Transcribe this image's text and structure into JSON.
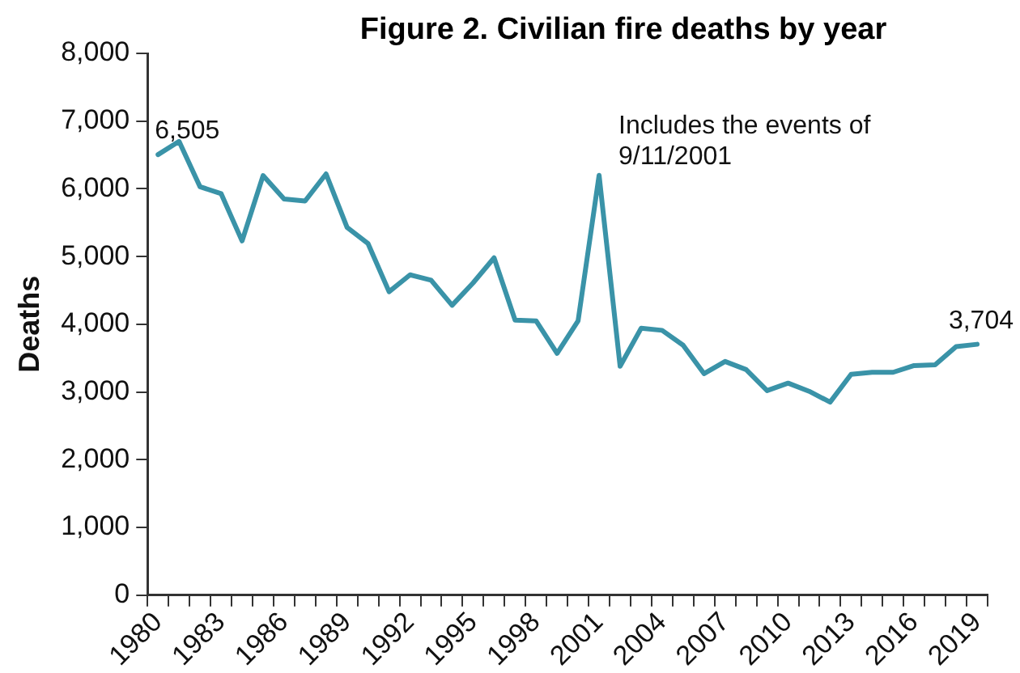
{
  "chart_data": {
    "type": "line",
    "title": "Figure 2. Civilian fire deaths by year",
    "ylabel": "Deaths",
    "categories": [
      "1980",
      null,
      null,
      "1983",
      null,
      null,
      "1986",
      null,
      null,
      "1989",
      null,
      null,
      "1992",
      null,
      null,
      "1995",
      null,
      null,
      "1998",
      null,
      null,
      "2001",
      null,
      null,
      "2004",
      null,
      null,
      "2007",
      null,
      null,
      "2010",
      null,
      null,
      "2013",
      null,
      null,
      "2016",
      null,
      null,
      "2019"
    ],
    "series": [
      {
        "color": "#3a93a8",
        "values": [
          6505,
          6700,
          6030,
          5930,
          5230,
          6195,
          5850,
          5820,
          6220,
          5430,
          5190,
          4480,
          4730,
          4650,
          4280,
          4610,
          4980,
          4060,
          4050,
          3570,
          4050,
          6200,
          3380,
          3940,
          3910,
          3690,
          3270,
          3450,
          3330,
          3020,
          3130,
          3010,
          2850,
          3260,
          3290,
          3290,
          3390,
          3400,
          3670,
          3704
        ]
      }
    ],
    "ylim": [
      0,
      8000
    ],
    "yticks": [
      0,
      {
        "value": 1000,
        "label": "1,000"
      },
      {
        "value": 2000,
        "label": "2,000"
      },
      {
        "value": 3000,
        "label": "3,000"
      },
      {
        "value": 4000,
        "label": "4,000"
      },
      {
        "value": 5000,
        "label": "5,000"
      },
      {
        "value": 6000,
        "label": "6,000"
      },
      {
        "value": 7000,
        "label": "7,000"
      },
      {
        "value": 8000,
        "label": "8,000"
      }
    ],
    "grid": false,
    "legend": false,
    "marker": "none",
    "line_style": "solid",
    "annotations": [
      {
        "text": "6,505",
        "x": "1980",
        "y": 6505
      },
      {
        "text": "Includes the events of 9/11/2001",
        "x": "2001",
        "y": 6200
      },
      {
        "text": "3,704",
        "x": "2019",
        "y": 3704
      }
    ]
  }
}
